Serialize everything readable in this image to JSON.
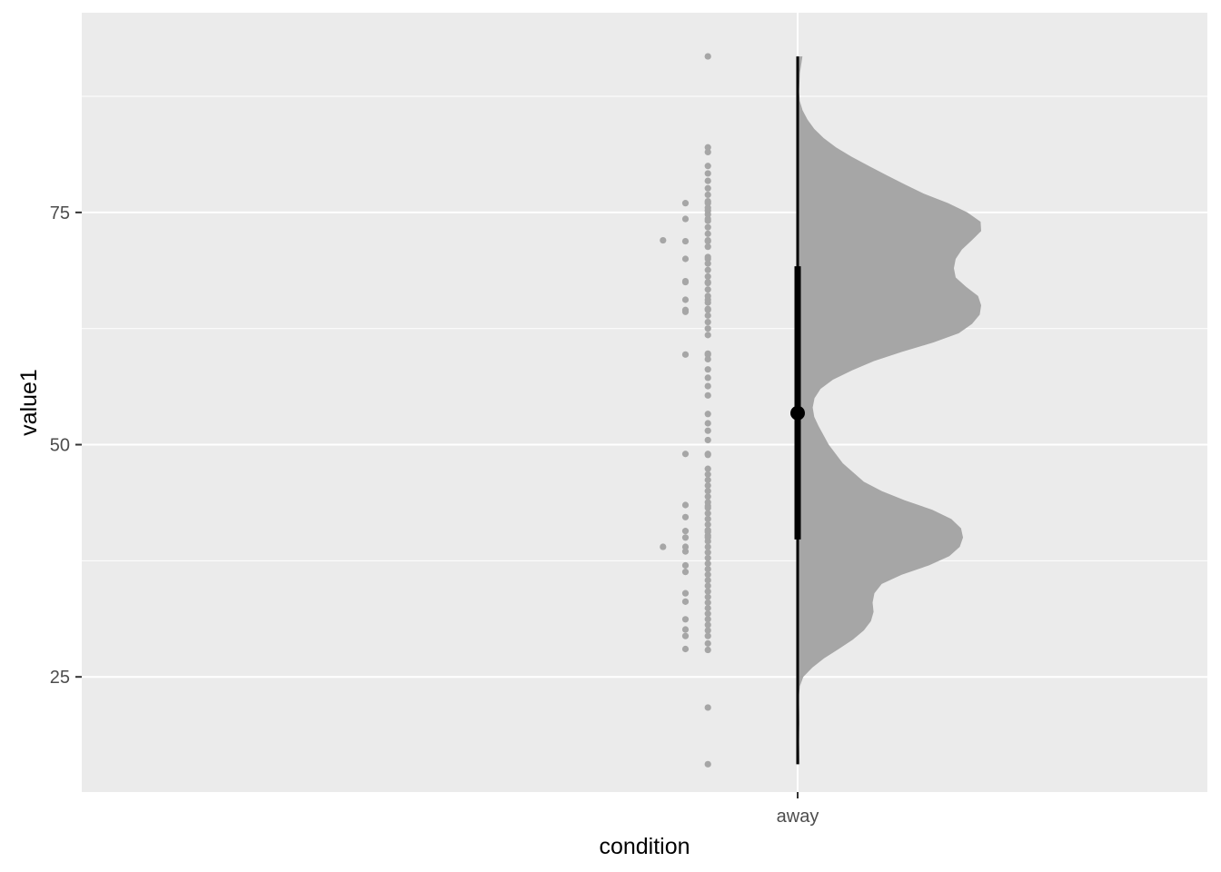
{
  "chart_data": {
    "type": "raincloud",
    "xlabel": "condition",
    "ylabel": "value1",
    "categories": [
      "away"
    ],
    "ylim": [
      12.6,
      96.5
    ],
    "yticks": [
      25,
      50,
      75
    ],
    "grid": true,
    "colors": {
      "panel": "#ebebeb",
      "grid": "#ffffff",
      "density": "#a6a6a6",
      "points": "#a6a6a6",
      "summary": "#000000"
    },
    "density": {
      "y": [
        15.6,
        17,
        18,
        19,
        20,
        21,
        22,
        23,
        24,
        25,
        26,
        27,
        28,
        29,
        30,
        31,
        32,
        33,
        34,
        35,
        36,
        37,
        38,
        39,
        40,
        41,
        42,
        43,
        44,
        45,
        46,
        48,
        50,
        52,
        53,
        54,
        55,
        56,
        57,
        58,
        59,
        60,
        61,
        62,
        63,
        64,
        65,
        66,
        67,
        68,
        69,
        70,
        71,
        72,
        73,
        74,
        75,
        76,
        77,
        78,
        79,
        80,
        81,
        82,
        83,
        84,
        85,
        86,
        87,
        88,
        89,
        90,
        91.8
      ],
      "width": [
        0.14,
        0.12,
        0.1,
        0.11,
        0.13,
        0.12,
        0.1,
        0.09,
        0.16,
        0.4,
        1.04,
        1.88,
        2.92,
        3.92,
        4.71,
        5.21,
        5.4,
        5.33,
        5.46,
        5.98,
        7.4,
        9.33,
        10.79,
        11.53,
        11.76,
        11.62,
        10.93,
        9.56,
        7.63,
        5.98,
        4.71,
        3.21,
        2.21,
        1.49,
        1.18,
        1.07,
        1.2,
        1.63,
        2.51,
        3.87,
        5.43,
        7.44,
        9.66,
        11.46,
        12.4,
        12.95,
        13.05,
        12.83,
        11.97,
        11.24,
        11.11,
        11.24,
        11.68,
        12.39,
        13.05,
        13.01,
        12.07,
        10.7,
        9.0,
        7.65,
        6.34,
        5.07,
        3.83,
        2.73,
        1.85,
        1.18,
        0.7,
        0.35,
        0.15,
        0.1,
        0.13,
        0.16,
        0.34
      ]
    },
    "points": {
      "x": [
        0.92,
        0.92,
        0.92,
        0.92,
        0.92,
        0.92,
        0.92,
        0.92,
        0.92,
        0.92,
        0.92,
        0.92,
        0.92,
        0.92,
        0.92,
        0.92,
        0.92,
        0.92,
        0.92,
        0.92,
        0.92,
        0.92,
        0.92,
        0.92,
        0.92,
        0.92,
        0.92,
        0.92,
        0.92,
        0.92,
        0.92,
        0.92,
        0.92,
        0.92,
        0.92,
        0.92,
        0.92,
        0.92,
        0.92,
        0.92,
        0.92,
        0.92,
        0.92,
        0.92,
        0.92,
        0.92,
        0.92,
        0.92,
        0.92,
        0.92,
        0.92,
        0.92,
        0.92,
        0.92,
        0.92,
        0.92,
        0.92,
        0.92,
        0.92,
        0.92,
        0.92,
        0.92,
        0.92,
        0.92,
        0.92,
        0.92,
        0.92,
        0.92,
        0.92,
        0.92,
        0.92,
        0.92,
        0.92,
        0.92,
        0.92,
        0.92,
        0.92,
        0.92,
        0.92,
        0.92,
        0.92,
        0.92,
        0.92,
        0.92,
        0.92,
        0.92,
        0.92,
        0.92,
        0.9,
        0.9,
        0.9,
        0.9,
        0.9,
        0.9,
        0.9,
        0.9,
        0.9,
        0.9,
        0.9,
        0.9,
        0.9,
        0.9,
        0.9,
        0.9,
        0.9,
        0.9,
        0.9,
        0.9,
        0.9,
        0.9,
        0.9,
        0.9,
        0.9,
        0.88,
        0.88
      ],
      "y": [
        91.8,
        82.0,
        81.5,
        80.0,
        79.2,
        78.4,
        77.6,
        76.9,
        76.2,
        75.5,
        74.8,
        74.1,
        73.4,
        72.7,
        72.0,
        71.3,
        70.2,
        69.5,
        68.8,
        68.1,
        67.4,
        66.7,
        66.0,
        65.3,
        64.6,
        63.9,
        63.2,
        62.5,
        61.8,
        59.8,
        59.2,
        58.1,
        57.2,
        56.3,
        55.3,
        53.3,
        52.3,
        51.5,
        50.5,
        48.9,
        47.4,
        46.8,
        46.2,
        45.6,
        45.0,
        44.4,
        43.8,
        43.2,
        42.6,
        42.0,
        41.4,
        40.8,
        40.2,
        39.6,
        39.0,
        38.4,
        37.8,
        37.2,
        36.6,
        36.0,
        35.4,
        34.8,
        34.2,
        33.6,
        33.0,
        32.4,
        31.8,
        31.2,
        30.6,
        30.0,
        29.4,
        28.6,
        27.9,
        21.7,
        15.6,
        76.0,
        75.2,
        74.3,
        71.9,
        70.0,
        67.5,
        65.6,
        64.5,
        59.7,
        49.0,
        43.4,
        40.6,
        40.0,
        76.0,
        74.3,
        71.9,
        70.0,
        67.6,
        65.6,
        64.3,
        59.7,
        49.0,
        43.5,
        42.2,
        40.7,
        40.0,
        39.0,
        36.3,
        34.0,
        31.2,
        30.1,
        29.4,
        28.0,
        67.5,
        64.5,
        38.5,
        37.0,
        33.1,
        72.0,
        39.0
      ]
    },
    "median": 53.4,
    "interval_thick": [
      39.8,
      69.2
    ],
    "interval_thin": [
      15.6,
      91.8
    ]
  }
}
